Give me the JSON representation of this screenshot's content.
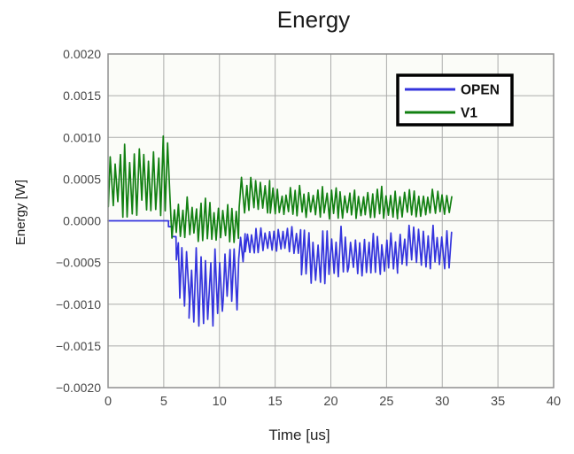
{
  "title": "Energy",
  "axes": {
    "x": {
      "label": "Time [us]",
      "tick_labels": [
        "0",
        "5",
        "10",
        "15",
        "20",
        "25",
        "30",
        "35",
        "40"
      ]
    },
    "y": {
      "label": "Energy [W]",
      "tick_labels": [
        "0.0020",
        "0.0015",
        "0.0010",
        "0.0005",
        "0.0000",
        "−0.0005",
        "−0.0010",
        "−0.0015",
        "−0.0020"
      ]
    }
  },
  "legend": {
    "items": [
      {
        "label": "OPEN",
        "color": "#3434dd"
      },
      {
        "label": "V1",
        "color": "#128012"
      }
    ]
  },
  "colors": {
    "page_bg": "#ffffff",
    "plot_bg": "#fbfcf8",
    "grid": "#ababab",
    "plot_border": "#8f8f8f",
    "tick_text": "#4a4a4a",
    "title_text": "#1a1a1a",
    "axis_label_text": "#222222",
    "legend_border": "#000000",
    "legend_bg": "#ffffff",
    "legend_text": "#111111"
  },
  "chart_data": {
    "type": "line",
    "title": "Energy",
    "xlabel": "Time [us]",
    "ylabel": "Energy [W]",
    "xlim": [
      0,
      40
    ],
    "ylim": [
      -0.002,
      0.002
    ],
    "x_ticks": [
      0,
      5,
      10,
      15,
      20,
      25,
      30,
      35,
      40
    ],
    "y_ticks": [
      0.002,
      0.0015,
      0.001,
      0.0005,
      0,
      -0.0005,
      -0.001,
      -0.0015,
      -0.002
    ],
    "grid": true,
    "legend_position": "upper-right",
    "data_t_end_us": 30.9,
    "segment_format": "[t_start_us, t_end_us, v_min_W, v_max_W, osc_period_us] — high-frequency oscillation filling the envelope; period 0 = flat/step level",
    "series": [
      {
        "name": "OPEN",
        "color": "#3434dd",
        "segments": [
          [
            0,
            5.42,
            0,
            0,
            0
          ],
          [
            5.42,
            5.75,
            -7e-05,
            -7e-05,
            0
          ],
          [
            5.75,
            6.1,
            -0.00019,
            -0.00019,
            0
          ],
          [
            6.1,
            6.45,
            -0.0005,
            -0.00022,
            0.4
          ],
          [
            6.45,
            7.3,
            -0.00105,
            -0.00028,
            0.42
          ],
          [
            7.3,
            10.3,
            -0.00129,
            -0.0003,
            0.42
          ],
          [
            10.3,
            11.7,
            -0.00108,
            -0.00028,
            0.42
          ],
          [
            11.7,
            12.3,
            -0.0005,
            -6e-05,
            0.4
          ],
          [
            12.3,
            17.4,
            -0.0004,
            -7e-05,
            0.4
          ],
          [
            17.4,
            21.6,
            -0.00076,
            -6e-05,
            0.41
          ],
          [
            21.6,
            26,
            -0.00066,
            -9e-05,
            0.4
          ],
          [
            26,
            30.9,
            -0.00058,
            -5e-05,
            0.42
          ]
        ]
      },
      {
        "name": "V1",
        "color": "#128012",
        "segments": [
          [
            0,
            5.72,
            3e-05,
            0.00103,
            0.43
          ],
          [
            5.72,
            11.8,
            -0.00026,
            0.00029,
            0.4
          ],
          [
            11.8,
            14.6,
            7e-05,
            0.00054,
            0.42
          ],
          [
            14.6,
            18.2,
            4e-05,
            0.00043,
            0.4
          ],
          [
            18.2,
            26,
            2e-05,
            0.00042,
            0.41
          ],
          [
            26,
            30.9,
            4e-05,
            0.00038,
            0.42
          ]
        ]
      }
    ]
  }
}
